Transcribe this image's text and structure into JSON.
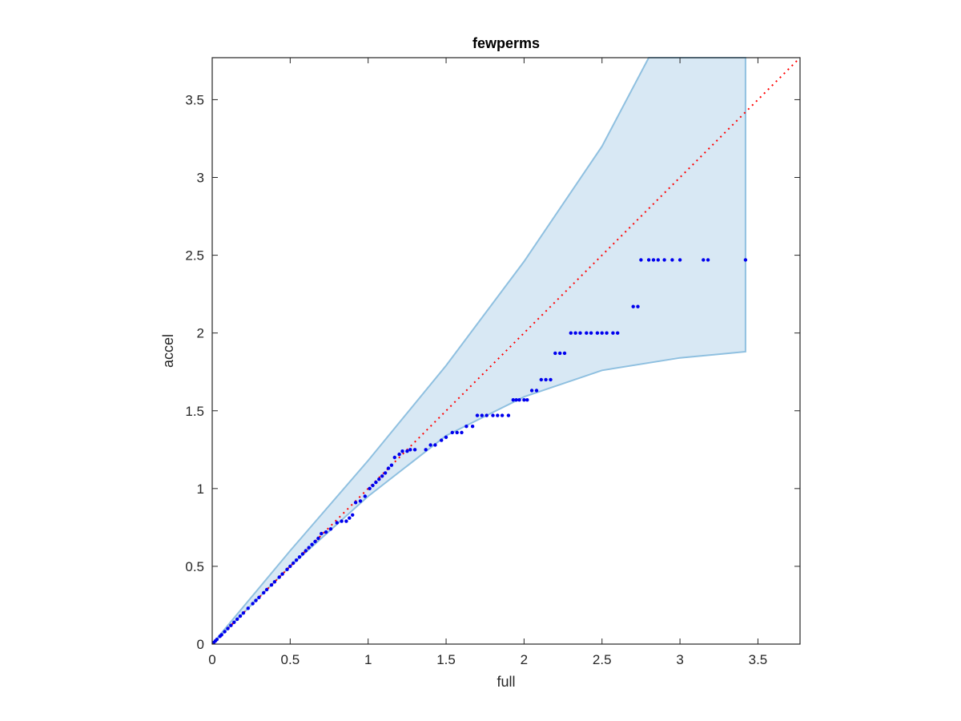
{
  "chart_data": {
    "type": "scatter",
    "title": "fewperms",
    "xlabel": "full",
    "ylabel": "accel",
    "xlim": [
      0,
      3.77
    ],
    "ylim": [
      0,
      3.77
    ],
    "xticks": [
      "0",
      "0.5",
      "1",
      "1.5",
      "2",
      "2.5",
      "3",
      "3.5"
    ],
    "yticks": [
      "0",
      "0.5",
      "1",
      "1.5",
      "2",
      "2.5",
      "3",
      "3.5"
    ],
    "tick_values": [
      0,
      0.5,
      1,
      1.5,
      2,
      2.5,
      3,
      3.5
    ],
    "grid": false,
    "colors": {
      "band_fill": "#d8e8f4",
      "band_edge": "#8fc0e0",
      "points": "#0000ee",
      "reference_line": "#ff0000",
      "axes": "#262626"
    },
    "band": {
      "upper": [
        [
          0,
          0
        ],
        [
          0.5,
          0.6
        ],
        [
          1,
          1.18
        ],
        [
          1.5,
          1.79
        ],
        [
          2,
          2.46
        ],
        [
          2.5,
          3.2
        ],
        [
          2.8,
          3.77
        ],
        [
          3.42,
          3.77
        ]
      ],
      "lower": [
        [
          0,
          0
        ],
        [
          0.5,
          0.5
        ],
        [
          1,
          0.95
        ],
        [
          1.5,
          1.34
        ],
        [
          2,
          1.59
        ],
        [
          2.5,
          1.76
        ],
        [
          3,
          1.84
        ],
        [
          3.42,
          1.88
        ]
      ]
    },
    "reference_line": [
      [
        0,
        0
      ],
      [
        3.77,
        3.77
      ]
    ],
    "series": [
      {
        "x": [
          0.01,
          0.02,
          0.03,
          0.05,
          0.06,
          0.08,
          0.1,
          0.12,
          0.14,
          0.16,
          0.18,
          0.2,
          0.23,
          0.26,
          0.28,
          0.3,
          0.33,
          0.35,
          0.38,
          0.4,
          0.43,
          0.45,
          0.48,
          0.5,
          0.52,
          0.54,
          0.56,
          0.58,
          0.6,
          0.62,
          0.64,
          0.66,
          0.68,
          0.7,
          0.73,
          0.76,
          0.8,
          0.83,
          0.86,
          0.88,
          0.9,
          0.92,
          0.95,
          0.98,
          1.01,
          1.03,
          1.05,
          1.07,
          1.09,
          1.11,
          1.13,
          1.15,
          1.17,
          1.2,
          1.22,
          1.25,
          1.27,
          1.3,
          1.37,
          1.4,
          1.43,
          1.47,
          1.5,
          1.54,
          1.57,
          1.6,
          1.63,
          1.67,
          1.7,
          1.73,
          1.76,
          1.8,
          1.83,
          1.86,
          1.9,
          1.93,
          1.95,
          1.97,
          2.0,
          2.02,
          2.05,
          2.08,
          2.11,
          2.14,
          2.17,
          2.2,
          2.23,
          2.26,
          2.3,
          2.33,
          2.36,
          2.4,
          2.43,
          2.47,
          2.5,
          2.53,
          2.57,
          2.6,
          2.7,
          2.73,
          2.75,
          2.8,
          2.83,
          2.86,
          2.9,
          2.95,
          3.0,
          3.15,
          3.18,
          3.42
        ],
        "y": [
          0.01,
          0.02,
          0.03,
          0.05,
          0.06,
          0.08,
          0.1,
          0.12,
          0.14,
          0.16,
          0.18,
          0.2,
          0.23,
          0.26,
          0.28,
          0.3,
          0.33,
          0.35,
          0.38,
          0.4,
          0.43,
          0.45,
          0.48,
          0.5,
          0.52,
          0.54,
          0.56,
          0.58,
          0.6,
          0.62,
          0.64,
          0.66,
          0.68,
          0.71,
          0.72,
          0.74,
          0.78,
          0.79,
          0.79,
          0.81,
          0.83,
          0.91,
          0.92,
          0.95,
          1.0,
          1.02,
          1.04,
          1.06,
          1.08,
          1.1,
          1.13,
          1.15,
          1.2,
          1.22,
          1.24,
          1.24,
          1.25,
          1.25,
          1.25,
          1.28,
          1.28,
          1.31,
          1.33,
          1.36,
          1.36,
          1.36,
          1.4,
          1.4,
          1.47,
          1.47,
          1.47,
          1.47,
          1.47,
          1.47,
          1.47,
          1.57,
          1.57,
          1.57,
          1.57,
          1.57,
          1.63,
          1.63,
          1.7,
          1.7,
          1.7,
          1.87,
          1.87,
          1.87,
          2.0,
          2.0,
          2.0,
          2.0,
          2.0,
          2.0,
          2.0,
          2.0,
          2.0,
          2.0,
          2.17,
          2.17,
          2.47,
          2.47,
          2.47,
          2.47,
          2.47,
          2.47,
          2.47,
          2.47,
          2.47,
          2.47
        ]
      }
    ]
  }
}
